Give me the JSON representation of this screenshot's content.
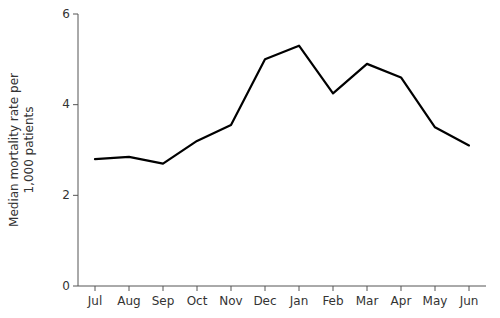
{
  "chart_data": {
    "type": "line",
    "categories": [
      "Jul",
      "Aug",
      "Sep",
      "Oct",
      "Nov",
      "Dec",
      "Jan",
      "Feb",
      "Mar",
      "Apr",
      "May",
      "Jun"
    ],
    "values": [
      2.8,
      2.85,
      2.7,
      3.2,
      3.55,
      5.0,
      5.3,
      4.25,
      4.9,
      4.6,
      3.5,
      3.1
    ],
    "ylabel": "Median mortality rate per\n1,000 patients",
    "color": "#000000",
    "ylim": [
      0,
      6
    ],
    "yticks": [
      0,
      2,
      4,
      6
    ],
    "grid": false
  }
}
